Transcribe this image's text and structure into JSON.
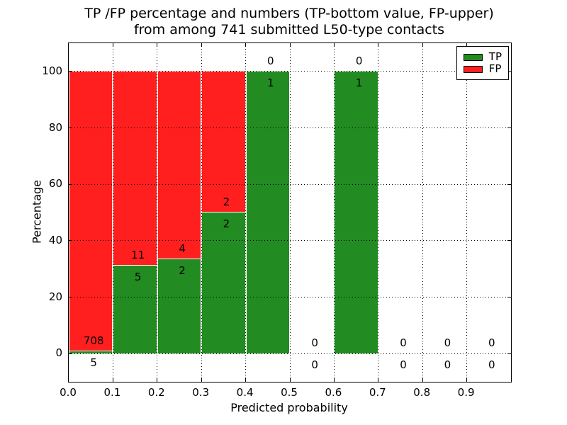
{
  "figure_title": {
    "line1": "TP /FP percentage and numbers (TP-bottom value, FP-upper)",
    "line2": "from among 741 submitted L50-type contacts"
  },
  "axes": {
    "xlabel": "Predicted probability",
    "ylabel": "Percentage"
  },
  "legend": {
    "items": [
      {
        "label": "TP",
        "color": "#228b22"
      },
      {
        "label": "FP",
        "color": "#ff1f1f"
      }
    ]
  },
  "chart_data": {
    "type": "bar",
    "stacked": true,
    "title": "TP /FP percentage and numbers (TP-bottom value, FP-upper) from among 741 submitted L50-type contacts",
    "xlabel": "Predicted probability",
    "ylabel": "Percentage",
    "total_contacts": 741,
    "annotation_rule": "TP count shown below the TP/FP boundary, FP count shown above it",
    "bin_width": 0.1,
    "categories": [
      "0.0-0.1",
      "0.1-0.2",
      "0.2-0.3",
      "0.3-0.4",
      "0.4-0.5",
      "0.5-0.6",
      "0.6-0.7",
      "0.7-0.8",
      "0.8-0.9",
      "0.9-1.0"
    ],
    "series": [
      {
        "name": "TP",
        "color": "#228b22",
        "counts": [
          5,
          5,
          2,
          2,
          1,
          0,
          1,
          0,
          0,
          0
        ],
        "percent": [
          0.7,
          31.25,
          33.33,
          50.0,
          100.0,
          0,
          100.0,
          0,
          0,
          0
        ]
      },
      {
        "name": "FP",
        "color": "#ff1f1f",
        "counts": [
          708,
          11,
          4,
          2,
          0,
          0,
          0,
          0,
          0,
          0
        ],
        "percent": [
          99.3,
          68.75,
          66.67,
          50.0,
          0,
          0,
          0,
          0,
          0,
          0
        ]
      }
    ],
    "xlim": [
      0.0,
      1.0
    ],
    "ylim": [
      -10,
      110
    ],
    "x_tick_labels": [
      "0.0",
      "0.1",
      "0.2",
      "0.3",
      "0.4",
      "0.5",
      "0.6",
      "0.7",
      "0.8",
      "0.9"
    ],
    "y_ticks": [
      0,
      20,
      40,
      60,
      80,
      100
    ],
    "grid": true,
    "grid_style": "dotted",
    "legend_position": "upper right"
  }
}
